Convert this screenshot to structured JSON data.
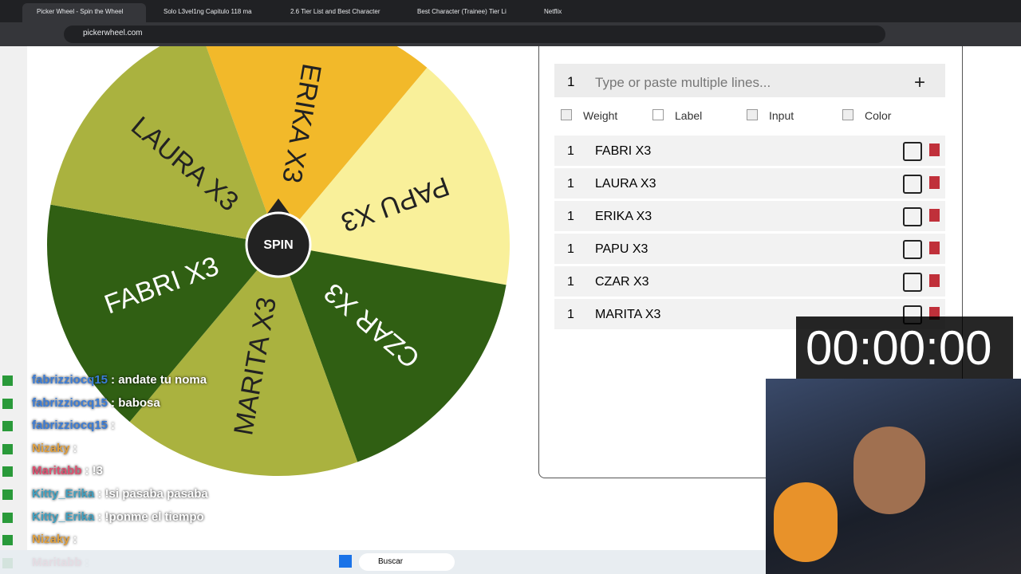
{
  "tabs": [
    "Picker Wheel - Spin the Wheel",
    "Solo L3vel1ng Capitulo 118 ma",
    "2.6 Tier List and Best Character",
    "Best Character (Trainee) Tier Li",
    "Netflix"
  ],
  "address": "pickerwheel.com",
  "wheel": {
    "button": "SPIN",
    "segments": [
      {
        "label": "ERIKA X3",
        "color": "#f2b92a"
      },
      {
        "label": "PAPU X3",
        "color": "#f9f09a"
      },
      {
        "label": "CZAR X3",
        "color": "#305f13"
      },
      {
        "label": "MARITA X3",
        "color": "#aab23f"
      },
      {
        "label": "FABRI X3",
        "color": "#305f13"
      },
      {
        "label": "LAURA X3",
        "color": "#aab23f"
      }
    ]
  },
  "input": {
    "count": "1",
    "placeholder": "Type or paste multiple lines..."
  },
  "options": [
    "Weight",
    "Label",
    "Input",
    "Color"
  ],
  "entries": [
    {
      "weight": "1",
      "label": "FABRI X3"
    },
    {
      "weight": "1",
      "label": "LAURA X3"
    },
    {
      "weight": "1",
      "label": "ERIKA X3"
    },
    {
      "weight": "1",
      "label": "PAPU X3"
    },
    {
      "weight": "1",
      "label": "CZAR X3"
    },
    {
      "weight": "1",
      "label": "MARITA X3"
    }
  ],
  "timer": "00:00:00",
  "chat": [
    {
      "user": "fabrizziocq15",
      "text": ": andate tu noma",
      "color": "#3b7dd8"
    },
    {
      "user": "fabrizziocq15",
      "text": ": babosa",
      "color": "#3b7dd8"
    },
    {
      "user": "fabrizziocq15",
      "text": ":",
      "color": "#3b7dd8"
    },
    {
      "user": "Nizaky",
      "text": ":",
      "color": "#e0a040"
    },
    {
      "user": "Maritabb",
      "text": ": !3",
      "color": "#e05070"
    },
    {
      "user": "Kitty_Erika",
      "text": ": !si pasaba pasaba",
      "color": "#40a0c0"
    },
    {
      "user": "Kitty_Erika",
      "text": ": !ponme el tiempo",
      "color": "#40a0c0"
    },
    {
      "user": "Nizaky",
      "text": ":",
      "color": "#e0a040"
    },
    {
      "user": "Maritabb",
      "text": ":",
      "color": "#e05070"
    }
  ],
  "taskbar": {
    "search": "Buscar"
  }
}
